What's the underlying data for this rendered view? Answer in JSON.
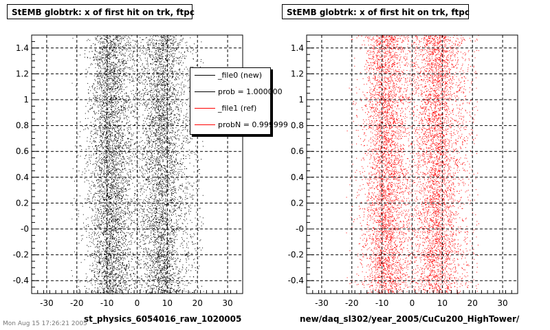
{
  "chart_data": [
    {
      "type": "scatter",
      "title": "StEMB globtrk: x of first hit on trk, ftpc",
      "xlabel": "st_physics_6054016_raw_1020005",
      "ylabel": "",
      "xlim": [
        -35,
        35
      ],
      "ylim": [
        -0.5,
        1.5
      ],
      "x_ticks": [
        -30,
        -20,
        -10,
        0,
        10,
        20,
        30
      ],
      "y_ticks": [
        -0.4,
        -0.2,
        0,
        0.2,
        0.4,
        0.6,
        0.8,
        1,
        1.2,
        1.4
      ],
      "y_tick_labels": [
        "-0.4",
        "-0.2",
        "-0",
        "0.2",
        "0.4",
        "0.6",
        "0.8",
        "1",
        "1.2",
        "1.4"
      ],
      "grid": true,
      "point_color": "#000000",
      "density_bands": [
        {
          "center": -9,
          "width": 3.2,
          "weight": 1.0
        },
        {
          "center": 8,
          "width": 3.0,
          "weight": 0.75
        },
        {
          "center": -1,
          "width": 9,
          "weight": 0.55
        },
        {
          "center": 14,
          "width": 5,
          "weight": 0.25
        }
      ],
      "x_extent": [
        -22,
        22
      ],
      "legend": {
        "placement": "top-right",
        "entries": [
          {
            "label": "_file0 (new)",
            "color": "#000000"
          },
          {
            "label": "prob = 1.000000",
            "color": "#000000"
          },
          {
            "label": "_file1 (ref)",
            "color": "#ff0000"
          },
          {
            "label": "probN = 0.999999",
            "color": "#ff0000"
          }
        ]
      }
    },
    {
      "type": "scatter",
      "title": "StEMB globtrk: x of first hit on trk, ftpc",
      "xlabel": "new/daq_sl302/year_2005/CuCu200_HighTower/",
      "ylabel": "",
      "xlim": [
        -35,
        35
      ],
      "ylim": [
        -0.5,
        1.5
      ],
      "x_ticks": [
        -30,
        -20,
        -10,
        0,
        10,
        20,
        30
      ],
      "y_ticks": [
        -0.4,
        -0.2,
        0,
        0.2,
        0.4,
        0.6,
        0.8,
        1,
        1.2,
        1.4
      ],
      "y_tick_labels": [
        "-0.4",
        "-0.2",
        "-0",
        "0.2",
        "0.4",
        "0.6",
        "0.8",
        "1",
        "1.2",
        "1.4"
      ],
      "grid": true,
      "point_color": "#ff0000",
      "density_bands": [
        {
          "center": -9,
          "width": 3.2,
          "weight": 1.0
        },
        {
          "center": 8,
          "width": 3.0,
          "weight": 0.75
        },
        {
          "center": -1,
          "width": 9,
          "weight": 0.55
        },
        {
          "center": 14,
          "width": 5,
          "weight": 0.25
        }
      ],
      "x_extent": [
        -22,
        22
      ]
    }
  ],
  "footer_text": "Mon Aug 15 17:26:21 2005"
}
